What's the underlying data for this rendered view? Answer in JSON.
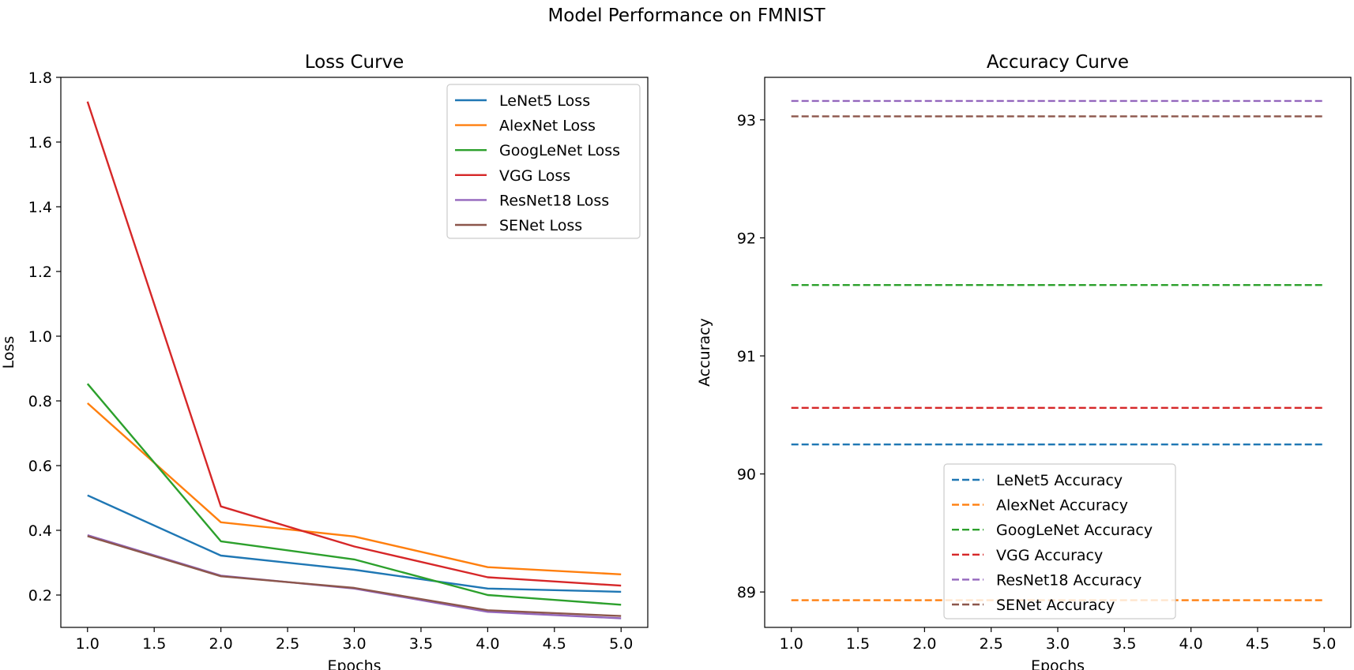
{
  "figure": {
    "title": "Model Performance on FMNIST"
  },
  "chart_data": [
    {
      "type": "line",
      "title": "Loss Curve",
      "xlabel": "Epochs",
      "ylabel": "Loss",
      "x": [
        1,
        2,
        3,
        4,
        5
      ],
      "xlim": [
        0.8,
        5.2
      ],
      "ylim": [
        0.1,
        1.8
      ],
      "xticks": [
        "1.0",
        "1.5",
        "2.0",
        "2.5",
        "3.0",
        "3.5",
        "4.0",
        "4.5",
        "5.0"
      ],
      "yticks": [
        "0.2",
        "0.4",
        "0.6",
        "0.8",
        "1.0",
        "1.2",
        "1.4",
        "1.6",
        "1.8"
      ],
      "grid": false,
      "legend_position": "top-right",
      "series": [
        {
          "name": "LeNet5 Loss",
          "color": "#1f77b4",
          "style": "solid",
          "values": [
            0.508,
            0.322,
            0.278,
            0.22,
            0.21
          ]
        },
        {
          "name": "AlexNet Loss",
          "color": "#ff7f0e",
          "style": "solid",
          "values": [
            0.793,
            0.425,
            0.381,
            0.286,
            0.264
          ]
        },
        {
          "name": "GoogLeNet Loss",
          "color": "#2ca02c",
          "style": "solid",
          "values": [
            0.853,
            0.366,
            0.31,
            0.2,
            0.17
          ]
        },
        {
          "name": "VGG Loss",
          "color": "#d62728",
          "style": "solid",
          "values": [
            1.725,
            0.474,
            0.35,
            0.255,
            0.229
          ]
        },
        {
          "name": "ResNet18 Loss",
          "color": "#9467bd",
          "style": "solid",
          "values": [
            0.385,
            0.26,
            0.22,
            0.148,
            0.128
          ]
        },
        {
          "name": "SENet Loss",
          "color": "#8c564b",
          "style": "solid",
          "values": [
            0.382,
            0.258,
            0.222,
            0.153,
            0.135
          ]
        }
      ]
    },
    {
      "type": "line",
      "title": "Accuracy Curve",
      "xlabel": "Epochs",
      "ylabel": "Accuracy",
      "x": [
        1,
        2,
        3,
        4,
        5
      ],
      "xlim": [
        0.8,
        5.2
      ],
      "ylim": [
        88.7,
        93.36
      ],
      "xticks": [
        "1.0",
        "1.5",
        "2.0",
        "2.5",
        "3.0",
        "3.5",
        "4.0",
        "4.5",
        "5.0"
      ],
      "yticks": [
        "89",
        "90",
        "91",
        "92",
        "93"
      ],
      "grid": false,
      "legend_position": "lower-center",
      "series": [
        {
          "name": "LeNet5 Accuracy",
          "color": "#1f77b4",
          "style": "dashed",
          "values": [
            90.25,
            90.25,
            90.25,
            90.25,
            90.25
          ]
        },
        {
          "name": "AlexNet Accuracy",
          "color": "#ff7f0e",
          "style": "dashed",
          "values": [
            88.93,
            88.93,
            88.93,
            88.93,
            88.93
          ]
        },
        {
          "name": "GoogLeNet Accuracy",
          "color": "#2ca02c",
          "style": "dashed",
          "values": [
            91.6,
            91.6,
            91.6,
            91.6,
            91.6
          ]
        },
        {
          "name": "VGG Accuracy",
          "color": "#d62728",
          "style": "dashed",
          "values": [
            90.56,
            90.56,
            90.56,
            90.56,
            90.56
          ]
        },
        {
          "name": "ResNet18 Accuracy",
          "color": "#9467bd",
          "style": "dashed",
          "values": [
            93.16,
            93.16,
            93.16,
            93.16,
            93.16
          ]
        },
        {
          "name": "SENet Accuracy",
          "color": "#8c564b",
          "style": "dashed",
          "values": [
            93.03,
            93.03,
            93.03,
            93.03,
            93.03
          ]
        }
      ]
    }
  ]
}
